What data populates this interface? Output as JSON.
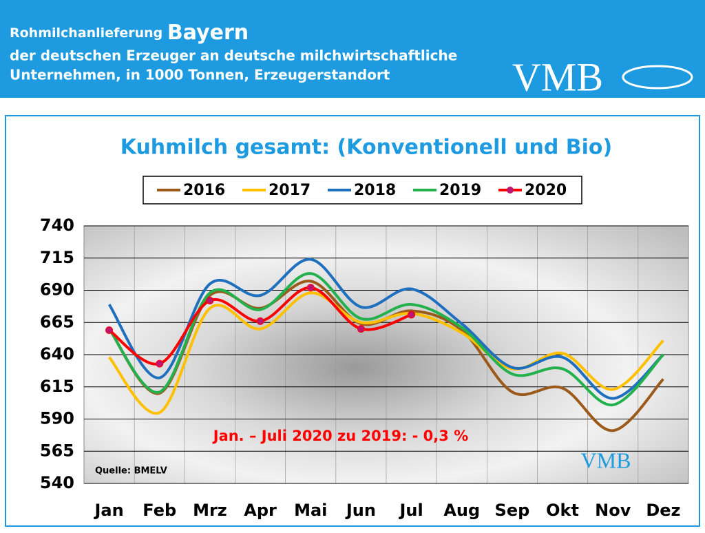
{
  "header": {
    "title_prefix": "Rohmilchanlieferung",
    "title_region": "Bayern",
    "line2": "der deutschen Erzeuger an deutsche milchwirtschaftliche",
    "line3": "Unternehmen, in 1000 Tonnen, Erzeugerstandort",
    "logo": "VMB"
  },
  "chart_data": {
    "type": "line",
    "title": "Kuhmilch gesamt: (Konventionell und Bio)",
    "categories": [
      "Jan",
      "Feb",
      "Mrz",
      "Apr",
      "Mai",
      "Jun",
      "Jul",
      "Aug",
      "Sep",
      "Okt",
      "Nov",
      "Dez"
    ],
    "series": [
      {
        "name": "2016",
        "color": "#9c5a1a",
        "values": [
          660,
          610,
          686,
          676,
          697,
          664,
          674,
          659,
          611,
          614,
          581,
          621
        ]
      },
      {
        "name": "2017",
        "color": "#ffc000",
        "values": [
          638,
          595,
          676,
          660,
          688,
          665,
          672,
          657,
          629,
          641,
          613,
          651
        ]
      },
      {
        "name": "2018",
        "color": "#1f6fbf",
        "values": [
          679,
          622,
          695,
          686,
          714,
          677,
          691,
          664,
          630,
          638,
          606,
          640
        ]
      },
      {
        "name": "2019",
        "color": "#22b14c",
        "values": [
          660,
          611,
          688,
          675,
          703,
          668,
          679,
          661,
          625,
          629,
          601,
          640
        ]
      },
      {
        "name": "2020",
        "color": "#ff0000",
        "marker": "#c0146e",
        "values": [
          659,
          633,
          682,
          666,
          692,
          660,
          671,
          null,
          null,
          null,
          null,
          null
        ]
      }
    ],
    "ylim": [
      540,
      740
    ],
    "yticks": [
      540,
      565,
      590,
      615,
      640,
      665,
      690,
      715,
      740
    ],
    "grid": true,
    "annotation": "Jan. – Juli 2020 zu 2019: - 0,3 %",
    "source": "Quelle:  BMELV",
    "logo": "VMB"
  }
}
